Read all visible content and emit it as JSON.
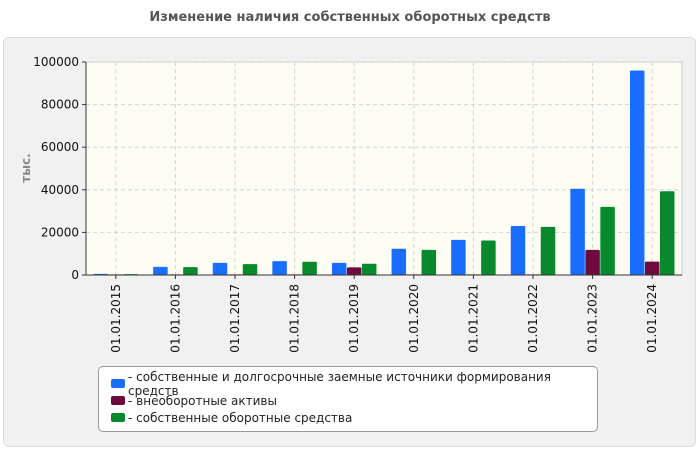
{
  "chart_data": {
    "type": "bar",
    "title": "Изменение наличия собственных оборотных средств",
    "xlabel": "",
    "ylabel": "тыс.",
    "ylim": [
      0,
      100000
    ],
    "yticks": [
      "0",
      "20000",
      "40000",
      "60000",
      "80000",
      "100000"
    ],
    "grid": true,
    "legend_position": "bottom",
    "categories": [
      "01.01.2015",
      "01.01.2016",
      "01.01.2017",
      "01.01.2018",
      "01.01.2019",
      "01.01.2020",
      "01.01.2021",
      "01.01.2022",
      "01.01.2023",
      "01.01.2024"
    ],
    "series": [
      {
        "name": "- собственные и долгосрочные заемные источники формирования средств",
        "color": "#1a6eff",
        "values": [
          500,
          3800,
          5700,
          6500,
          5700,
          12300,
          16500,
          23000,
          40500,
          96000
        ]
      },
      {
        "name": "- внеоборотные активы",
        "color": "#6e0b3c",
        "values": [
          300,
          300,
          300,
          300,
          3600,
          300,
          300,
          300,
          11800,
          6300
        ]
      },
      {
        "name": "- собственные оборотные средства",
        "color": "#07892c",
        "values": [
          400,
          3700,
          5100,
          6200,
          5300,
          11800,
          16200,
          22600,
          32000,
          39300
        ]
      }
    ]
  }
}
